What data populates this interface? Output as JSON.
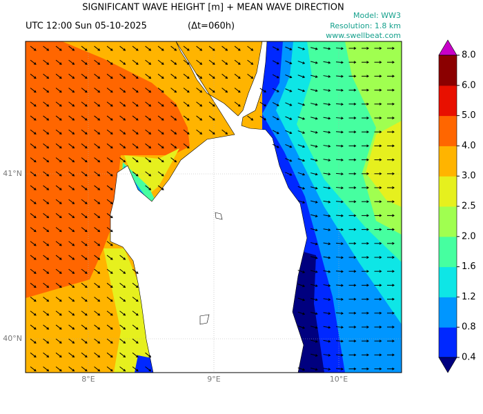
{
  "header": {
    "title": "SIGNIFICANT WAVE HEIGHT [m] + MEAN WAVE DIRECTION",
    "time": "UTC 12:00 Sun 05-10-2025",
    "lead": "(Δt=060h)",
    "model": "Model: WW3",
    "resolution": "Resolution: 1.8 km",
    "site": "www.swellbeat.com"
  },
  "map": {
    "lon_labels": [
      "8°E",
      "9°E",
      "10°E"
    ],
    "lat_labels": [
      "41°N",
      "40°N"
    ]
  },
  "colorbar": {
    "ticks": [
      "0.4",
      "0.8",
      "1.2",
      "1.6",
      "2.0",
      "2.5",
      "3.0",
      "4.0",
      "5.0",
      "6.0",
      "8.0"
    ],
    "colors": [
      "#0028ff",
      "#0096ff",
      "#0ee6e6",
      "#46ffa0",
      "#a0ff50",
      "#e6f01e",
      "#ffb400",
      "#ff6600",
      "#e81000",
      "#8b0000"
    ],
    "under": "#00007f",
    "over": "#c800c8"
  }
}
